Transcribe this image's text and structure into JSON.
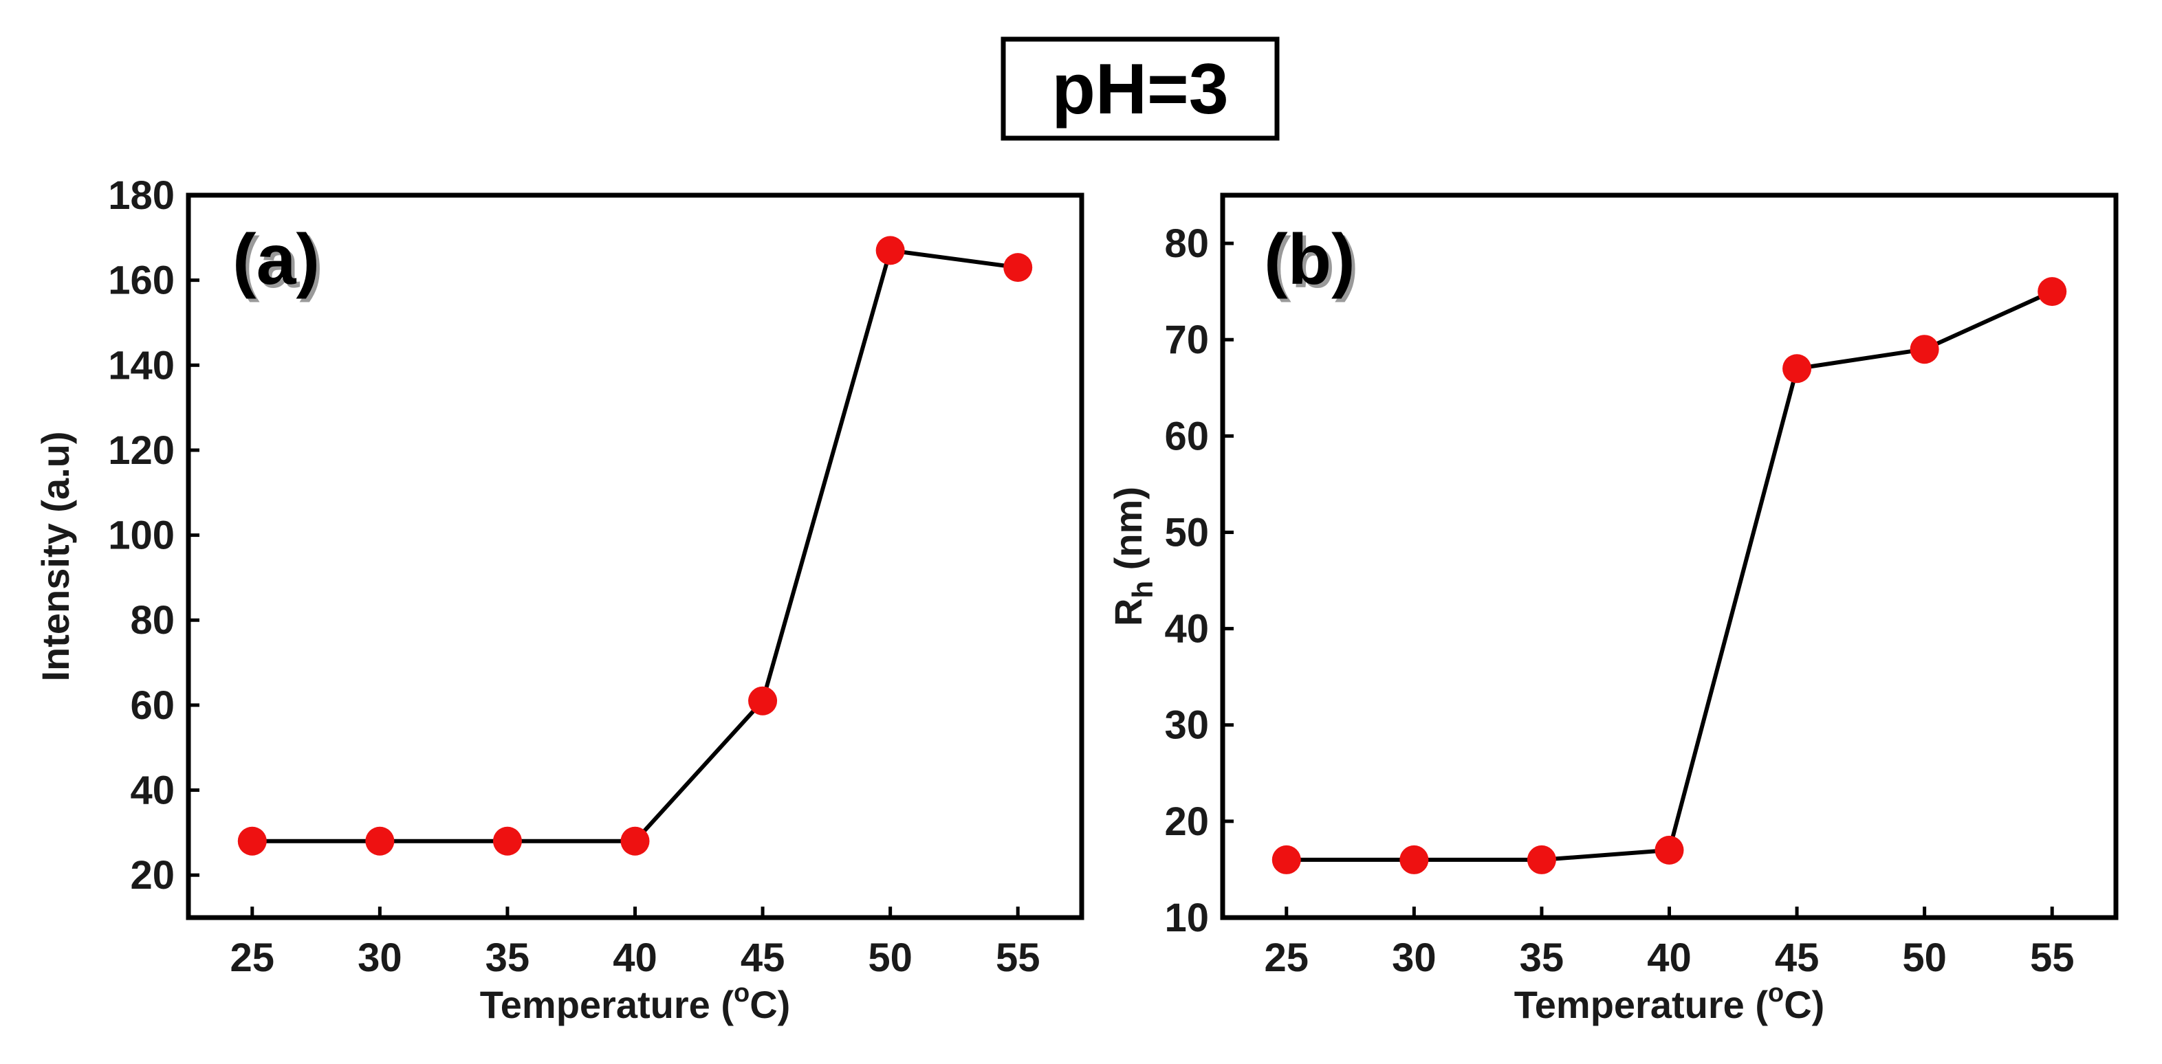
{
  "title": "pH=3",
  "colors": {
    "marker": "#ee1111",
    "line": "#000000",
    "frame": "#000000"
  },
  "chart_data": [
    {
      "type": "line",
      "panel_label": "(a)",
      "xlabel": "Temperature (",
      "xlabel_sup": "o",
      "xlabel_end": "C)",
      "ylabel": "Intensity (a.u)",
      "ylabel_sub": "",
      "ylabel_end": "",
      "x": [
        25,
        30,
        35,
        40,
        45,
        50,
        55
      ],
      "values": [
        28,
        28,
        28,
        28,
        61,
        167,
        163
      ],
      "xlim": [
        22.5,
        57.5
      ],
      "ylim": [
        10,
        180
      ],
      "xticks": [
        "25",
        "30",
        "35",
        "40",
        "45",
        "50",
        "55"
      ],
      "yticks": [
        "20",
        "40",
        "60",
        "80",
        "100",
        "120",
        "140",
        "160",
        "180"
      ]
    },
    {
      "type": "line",
      "panel_label": "(b)",
      "xlabel": "Temperature (",
      "xlabel_sup": "o",
      "xlabel_end": "C)",
      "ylabel": "R",
      "ylabel_sub": "h",
      "ylabel_end": " (nm)",
      "x": [
        25,
        30,
        35,
        40,
        45,
        50,
        55
      ],
      "values": [
        16,
        16,
        16,
        17,
        67,
        69,
        75
      ],
      "xlim": [
        22.5,
        57.5
      ],
      "ylim": [
        10,
        85
      ],
      "xticks": [
        "25",
        "30",
        "35",
        "40",
        "45",
        "50",
        "55"
      ],
      "yticks": [
        "10",
        "20",
        "30",
        "40",
        "50",
        "60",
        "70",
        "80"
      ]
    }
  ]
}
